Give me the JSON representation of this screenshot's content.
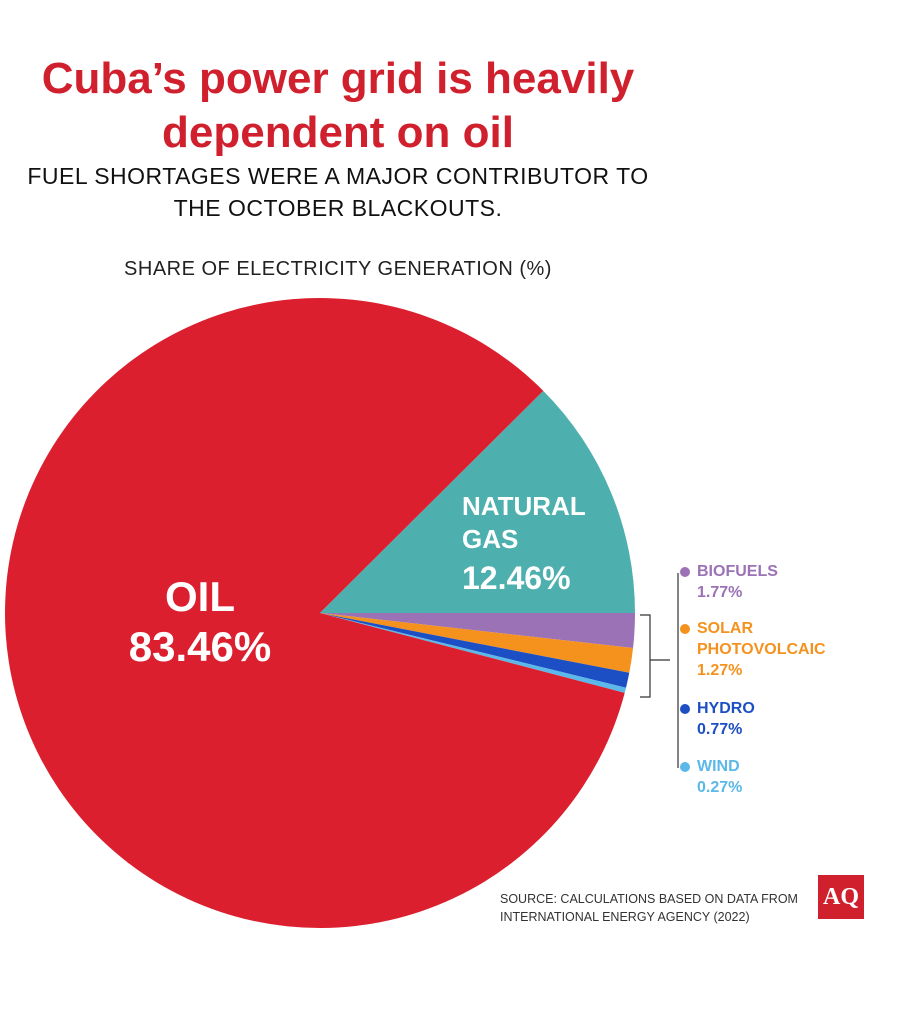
{
  "chart_data": {
    "type": "pie",
    "title": "Cuba’s power grid is heavily dependent on oil",
    "subtitle": "FUEL SHORTAGES WERE A MAJOR CONTRIBUTOR TO THE OCTOBER BLACKOUTS.",
    "chart_label": "SHARE OF ELECTRICITY GENERATION (%)",
    "categories": [
      "OIL",
      "NATURAL GAS",
      "BIOFUELS",
      "SOLAR PHOTOVOLCAIC",
      "HYDRO",
      "WIND"
    ],
    "values": [
      83.46,
      12.46,
      1.77,
      1.27,
      0.77,
      0.27
    ],
    "value_labels": [
      "83.46%",
      "12.46%",
      "1.77%",
      "1.27%",
      "0.77%",
      "0.27%"
    ],
    "colors": [
      "#dc1f2e",
      "#4db0ae",
      "#9b72b5",
      "#f5921e",
      "#1d4fc4",
      "#5bb8e8"
    ],
    "source": "SOURCE: CALCULATIONS BASED ON DATA FROM INTERNATIONAL ENERGY AGENCY (2022)",
    "logo": "AQ"
  }
}
